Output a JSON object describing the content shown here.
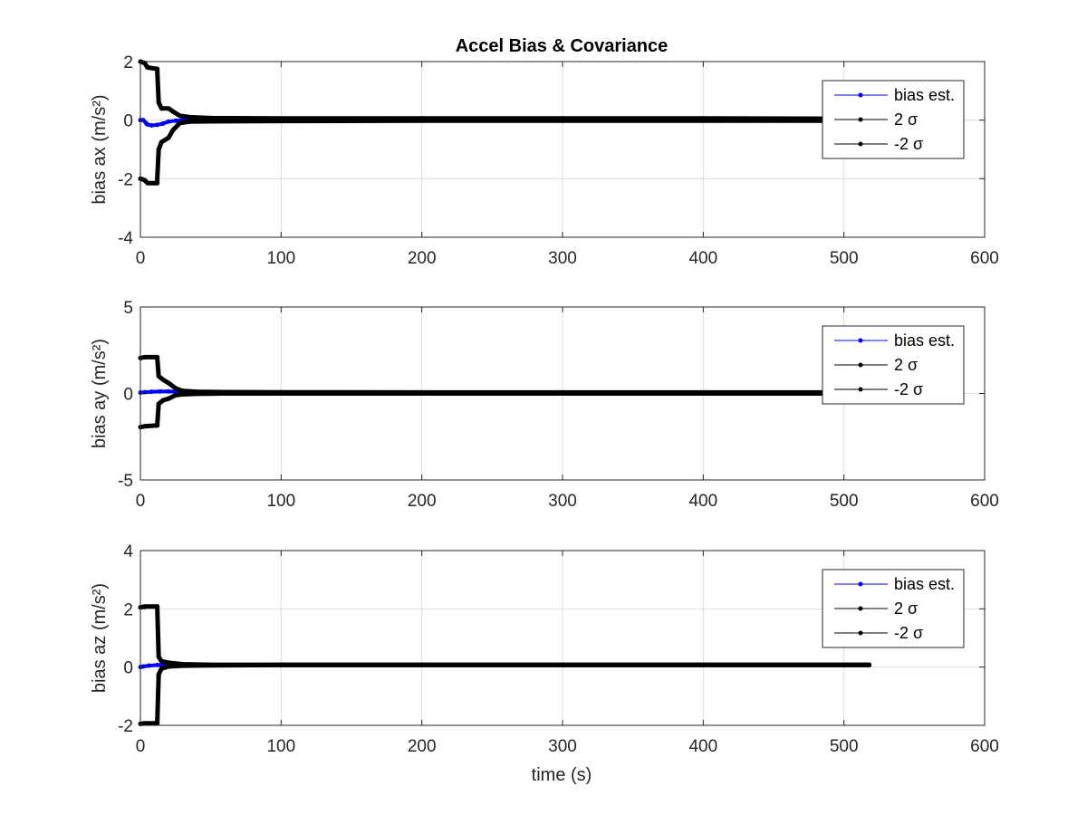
{
  "figure": {
    "title": "Accel Bias & Covariance",
    "xlabel": "time (s)"
  },
  "colors": {
    "estimate": "#0000ff",
    "sigma": "#000000",
    "grid": "#dcdcdc",
    "axis": "#262626",
    "tick_text": "#262626",
    "legend_border": "#262626"
  },
  "legend_entries": [
    "bias est.",
    "2 σ",
    "-2 σ"
  ],
  "chart_data": [
    {
      "type": "line",
      "ylabel": "bias ax (m/s²)",
      "xlim": [
        0,
        600
      ],
      "ylim": [
        -4,
        2
      ],
      "xticks": [
        0,
        100,
        200,
        300,
        400,
        500,
        600
      ],
      "yticks": [
        -4,
        -2,
        0,
        2
      ],
      "grid": true,
      "legend_position": "top-right",
      "series": [
        {
          "name": "bias est.",
          "color": "#0000ff",
          "x": [
            0,
            2,
            4,
            5,
            8,
            12,
            16,
            20,
            25,
            30,
            40,
            55
          ],
          "y": [
            0.0,
            0.0,
            -0.1,
            -0.15,
            -0.18,
            -0.16,
            -0.12,
            -0.05,
            -0.02,
            0.0,
            0.0,
            0.02
          ]
        },
        {
          "name": "2 σ",
          "color": "#000000",
          "x": [
            0,
            3,
            5,
            12,
            12,
            13,
            15,
            20,
            23,
            28,
            35,
            50,
            100,
            200,
            300,
            400,
            500,
            520
          ],
          "y": [
            2.0,
            1.95,
            1.8,
            1.75,
            1.7,
            0.6,
            0.4,
            0.4,
            0.3,
            0.15,
            0.1,
            0.07,
            0.06,
            0.06,
            0.06,
            0.06,
            0.05,
            0.05
          ]
        },
        {
          "name": "-2 σ",
          "color": "#000000",
          "x": [
            0,
            3,
            5,
            12,
            12,
            13,
            15,
            20,
            23,
            28,
            35,
            50,
            100,
            200,
            300,
            400,
            500,
            520
          ],
          "y": [
            -2.0,
            -2.05,
            -2.15,
            -2.15,
            -2.0,
            -1.0,
            -0.75,
            -0.6,
            -0.35,
            -0.1,
            -0.05,
            -0.04,
            -0.03,
            -0.02,
            -0.02,
            -0.02,
            -0.02,
            -0.02
          ]
        }
      ]
    },
    {
      "type": "line",
      "ylabel": "bias ay (m/s²)",
      "xlim": [
        0,
        600
      ],
      "ylim": [
        -5,
        5
      ],
      "xticks": [
        0,
        100,
        200,
        300,
        400,
        500,
        600
      ],
      "yticks": [
        -5,
        0,
        5
      ],
      "grid": true,
      "legend_position": "top-right",
      "series": [
        {
          "name": "bias est.",
          "color": "#0000ff",
          "x": [
            0,
            3,
            8,
            14,
            20,
            28,
            40
          ],
          "y": [
            0.05,
            0.07,
            0.1,
            0.12,
            0.12,
            0.1,
            0.08
          ]
        },
        {
          "name": "2 σ",
          "color": "#000000",
          "x": [
            0,
            3,
            12,
            12,
            13,
            16,
            20,
            25,
            30,
            40,
            60,
            100,
            200,
            300,
            400,
            500,
            520
          ],
          "y": [
            2.05,
            2.1,
            2.1,
            2.05,
            1.0,
            0.8,
            0.6,
            0.3,
            0.15,
            0.1,
            0.08,
            0.07,
            0.06,
            0.06,
            0.06,
            0.06,
            0.06
          ]
        },
        {
          "name": "-2 σ",
          "color": "#000000",
          "x": [
            0,
            3,
            12,
            12,
            13,
            16,
            20,
            25,
            30,
            40,
            60,
            100,
            200,
            300,
            400,
            500,
            520
          ],
          "y": [
            -1.95,
            -1.9,
            -1.85,
            -1.8,
            -0.6,
            -0.4,
            -0.3,
            -0.1,
            -0.05,
            -0.02,
            0.0,
            0.0,
            0.0,
            0.0,
            0.0,
            0.0,
            0.0
          ]
        }
      ]
    },
    {
      "type": "line",
      "ylabel": "bias az (m/s²)",
      "xlim": [
        0,
        600
      ],
      "ylim": [
        -2,
        4
      ],
      "xticks": [
        0,
        100,
        200,
        300,
        400,
        500,
        600
      ],
      "yticks": [
        -2,
        0,
        2,
        4
      ],
      "grid": true,
      "legend_position": "top-right",
      "series": [
        {
          "name": "bias est.",
          "color": "#0000ff",
          "x": [
            0,
            2,
            6,
            12,
            20,
            30
          ],
          "y": [
            0.0,
            0.02,
            0.05,
            0.07,
            0.08,
            0.08
          ]
        },
        {
          "name": "2 σ",
          "color": "#000000",
          "x": [
            0,
            3,
            12,
            12,
            13,
            15,
            20,
            30,
            50,
            100,
            200,
            300,
            400,
            500,
            518
          ],
          "y": [
            2.05,
            2.08,
            2.08,
            2.05,
            0.35,
            0.2,
            0.15,
            0.1,
            0.08,
            0.08,
            0.08,
            0.08,
            0.08,
            0.08,
            0.08
          ]
        },
        {
          "name": "-2 σ",
          "color": "#000000",
          "x": [
            0,
            3,
            12,
            12,
            13,
            15,
            20,
            30,
            50,
            100,
            200,
            300,
            400,
            500,
            518
          ],
          "y": [
            -1.95,
            -1.93,
            -1.93,
            -1.9,
            -0.25,
            -0.05,
            0.02,
            0.05,
            0.06,
            0.07,
            0.07,
            0.07,
            0.07,
            0.07,
            0.07
          ]
        }
      ]
    }
  ]
}
